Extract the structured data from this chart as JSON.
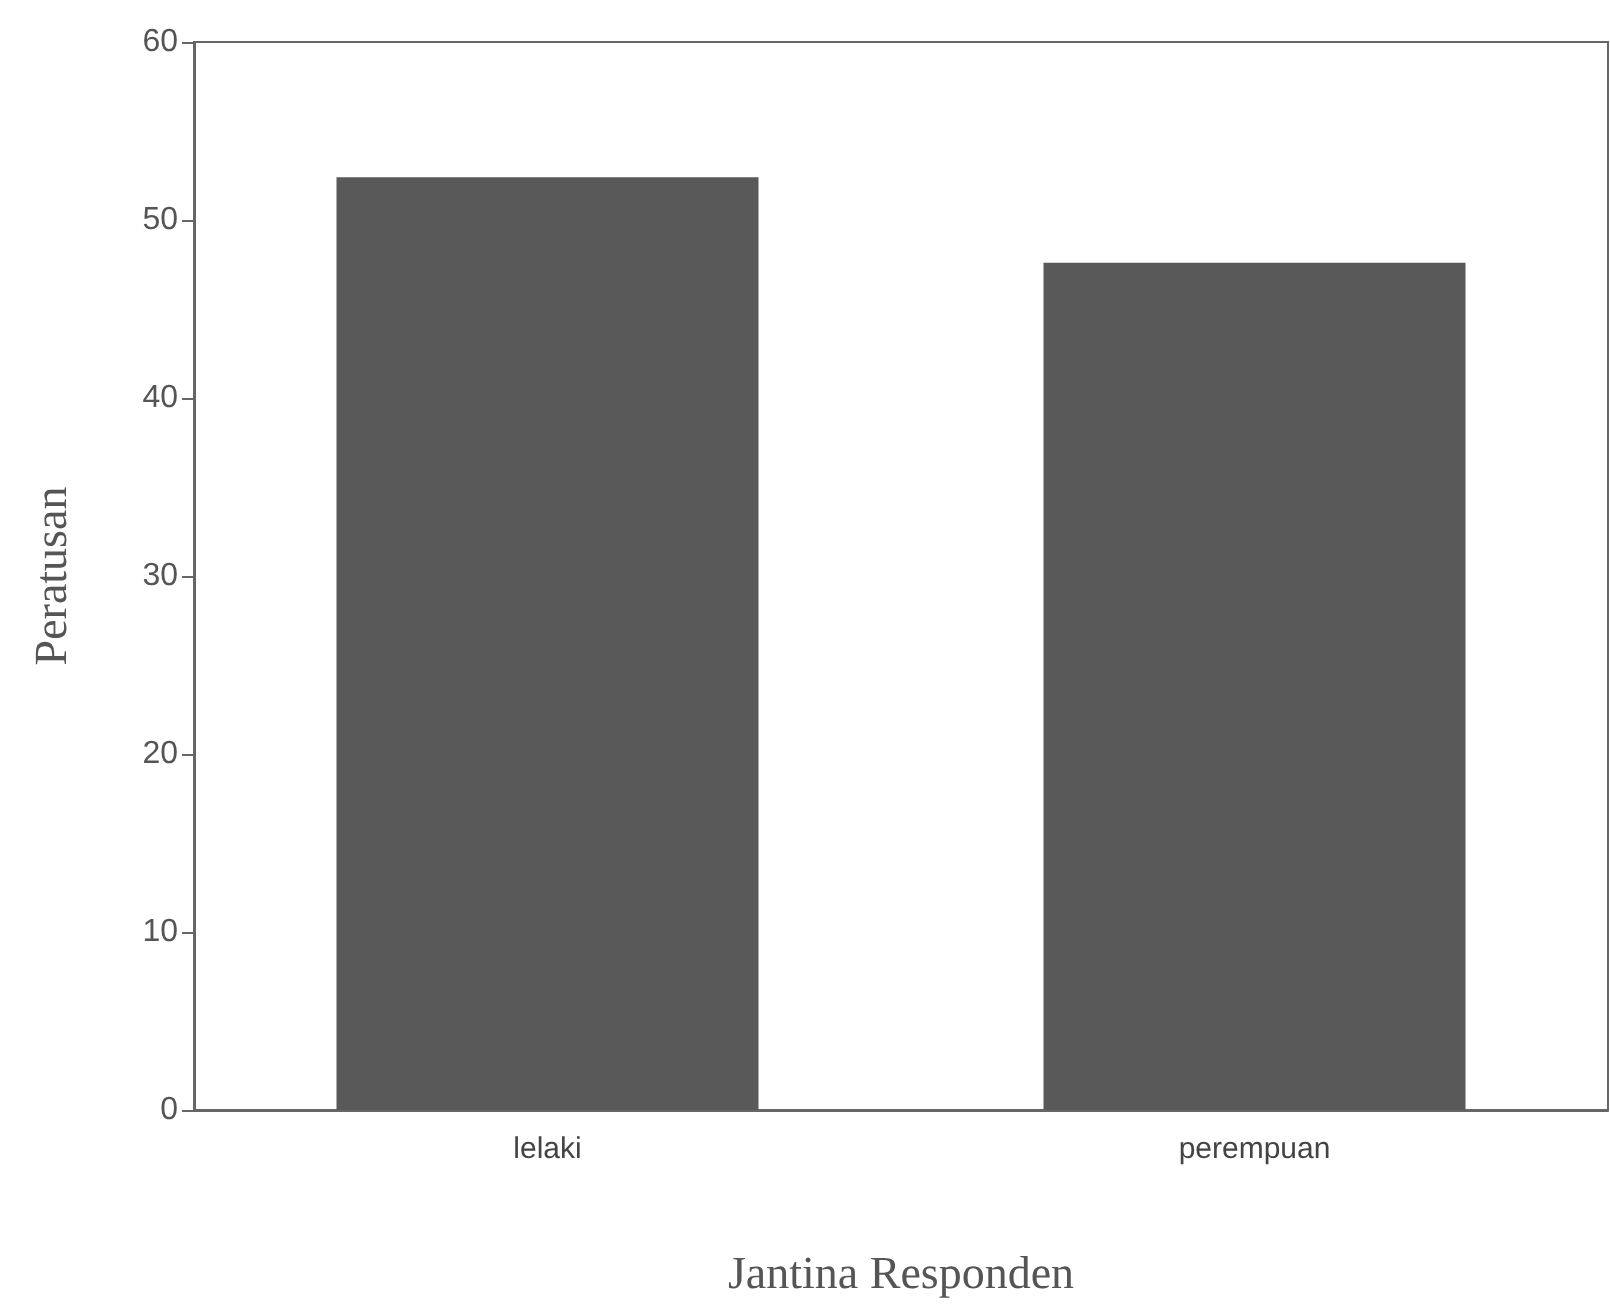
{
  "chart_data": {
    "type": "bar",
    "xlabel": "Jantina Responden",
    "ylabel": "Peratusan",
    "categories": [
      "lelaki",
      "perempuan"
    ],
    "values": [
      52.4,
      47.6
    ],
    "color": "#595959",
    "ylim": [
      0,
      60
    ],
    "yticks": [
      0,
      10,
      20,
      30,
      40,
      50,
      60
    ],
    "grid": false
  }
}
